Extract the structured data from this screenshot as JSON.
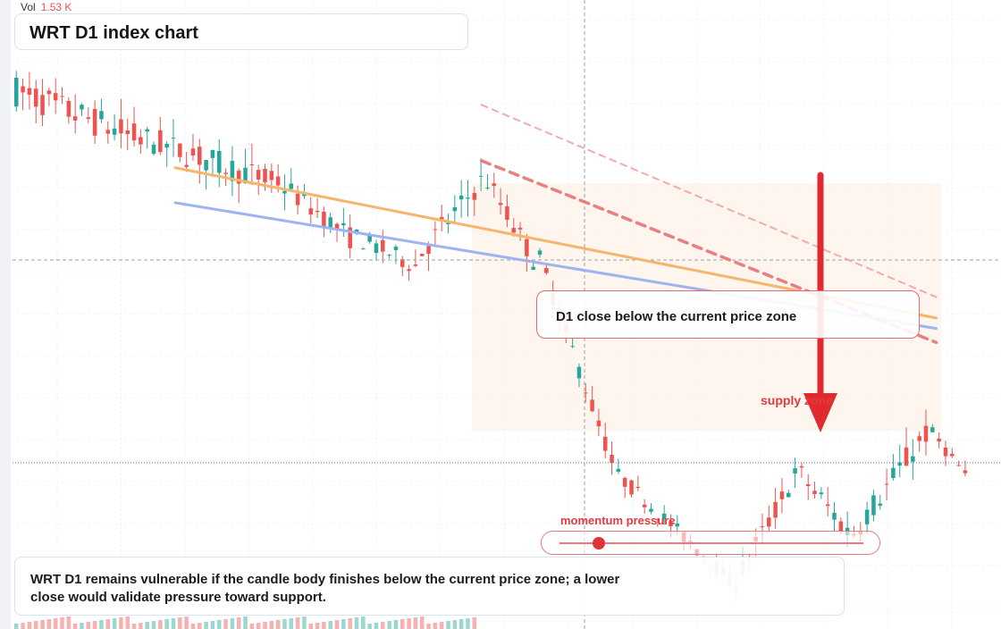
{
  "header": {
    "vol_label": "Vol",
    "vol_value": "1.53 K",
    "title": "WRT D1 index chart"
  },
  "annotations": {
    "callout_text": "D1 close below the current price zone",
    "supply_label": "supply zone",
    "momentum_label": "momentum pressure",
    "note_text": "WRT D1 remains vulnerable if the candle body finishes below the current price zone; a lower close would validate pressure toward support."
  },
  "colors": {
    "up": "#26a69a",
    "down": "#ef5350",
    "trend_orange": "#f5b56a",
    "trend_blue": "#9db4f0",
    "arrow": "#e02a2f",
    "zone_fill": "#fdf1e8"
  },
  "momentum": {
    "level": 0.07
  },
  "chart_data": {
    "type": "candlestick",
    "title": "WRT D1 index chart",
    "ylim": [
      10,
      100
    ],
    "grid": true,
    "legend": "none",
    "candle_segments": [
      {
        "count": 20,
        "start": 87,
        "end": 80,
        "vol": 2.8
      },
      {
        "count": 20,
        "start": 80,
        "end": 74,
        "vol": 2.5
      },
      {
        "count": 12,
        "start": 74,
        "end": 66,
        "vol": 2.0
      },
      {
        "count": 10,
        "start": 66,
        "end": 62,
        "vol": 1.8
      },
      {
        "count": 10,
        "start": 64,
        "end": 74,
        "vol": 2.2
      },
      {
        "count": 8,
        "start": 74,
        "end": 63,
        "vol": 2.0
      },
      {
        "count": 12,
        "start": 63,
        "end": 34,
        "vol": 1.8
      },
      {
        "count": 18,
        "start": 32,
        "end": 17,
        "vol": 1.4
      },
      {
        "count": 10,
        "start": 17,
        "end": 32,
        "vol": 2.0
      },
      {
        "count": 8,
        "start": 32,
        "end": 24,
        "vol": 2.2
      },
      {
        "count": 12,
        "start": 24,
        "end": 38,
        "vol": 2.4
      },
      {
        "count": 6,
        "start": 38,
        "end": 32,
        "vol": 1.2
      }
    ],
    "current_price": 62.8,
    "support_price": 33.8,
    "trendlines": [
      {
        "name": "orange",
        "from": [
          0.17,
          76
        ],
        "to": [
          0.965,
          54.5
        ]
      },
      {
        "name": "blue",
        "from": [
          0.17,
          71
        ],
        "to": [
          0.965,
          53
        ]
      },
      {
        "name": "red_dashed",
        "from": [
          0.49,
          77
        ],
        "to": [
          0.965,
          51
        ]
      },
      {
        "name": "red_light_dashed",
        "from": [
          0.49,
          85
        ],
        "to": [
          0.965,
          57.5
        ]
      }
    ]
  }
}
